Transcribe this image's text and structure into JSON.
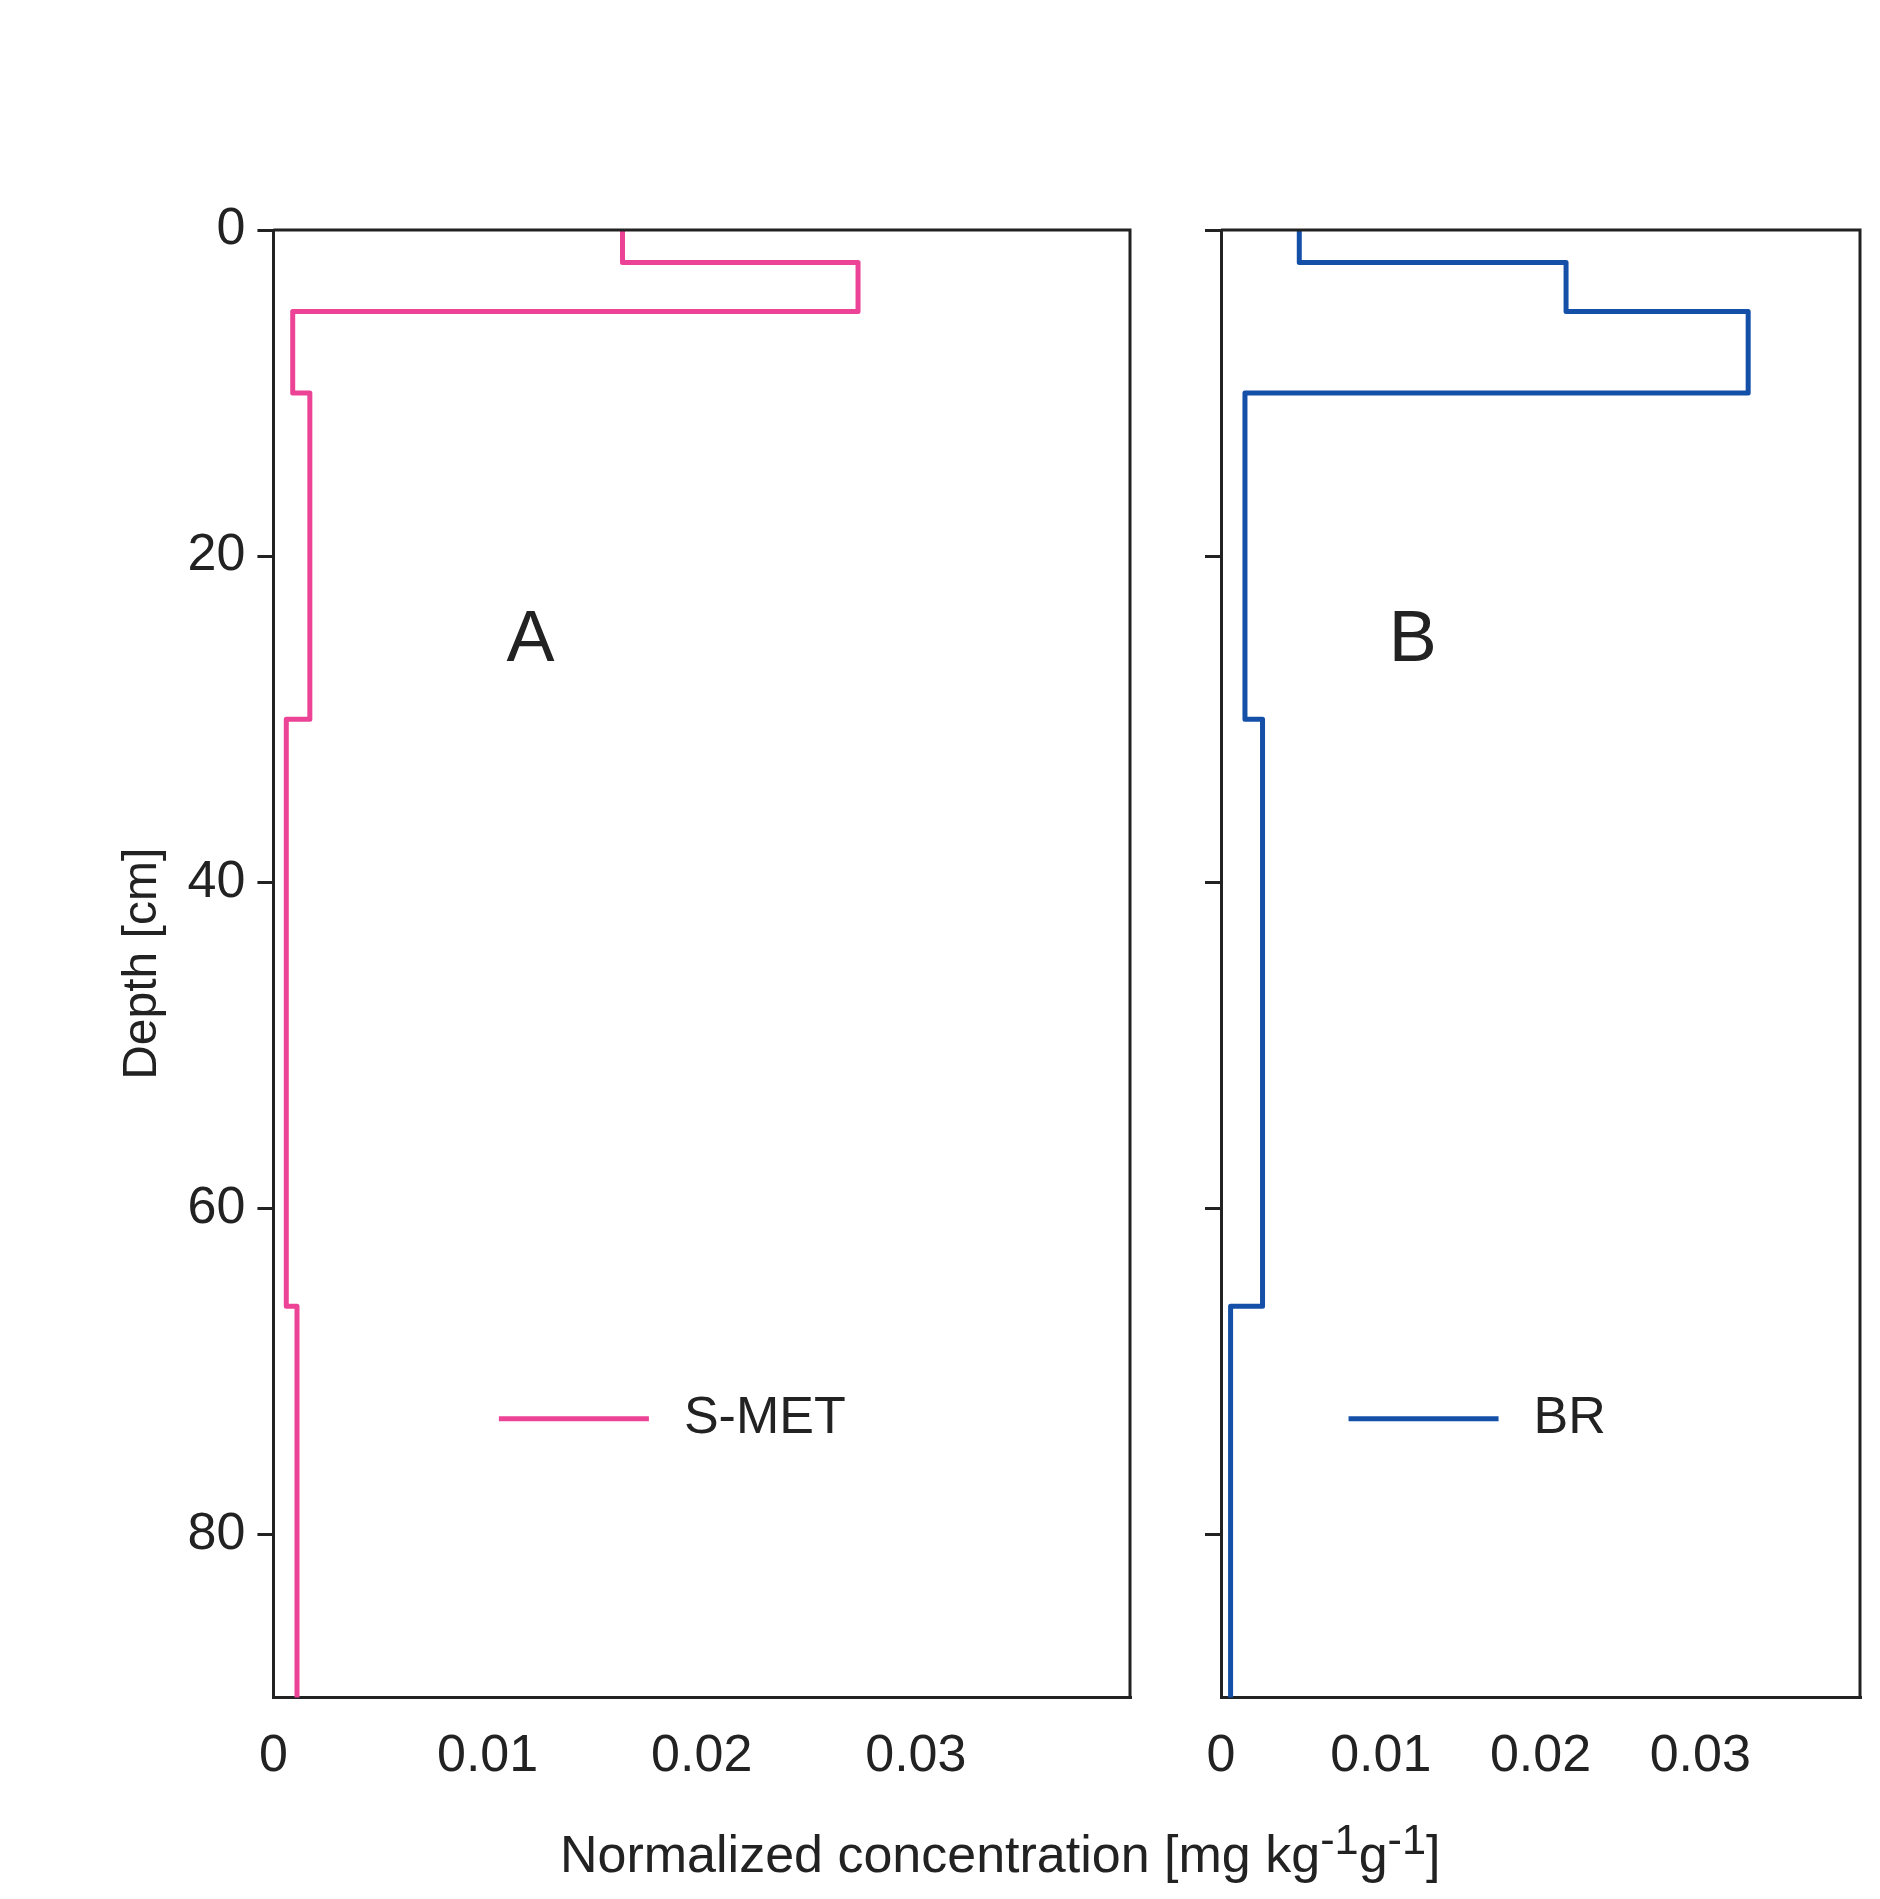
{
  "chart_data": [
    {
      "type": "line",
      "ylabel": "Depth [cm]",
      "xlabel": "Normalized concentration [mg kg$^{-1}$g$^{-1}$]",
      "annotations": [
        "A"
      ],
      "legend": "bottom",
      "xlim": [
        0,
        0.04
      ],
      "xticks": [
        0,
        0.01,
        0.02,
        0.03
      ],
      "ylim": [
        90,
        0
      ],
      "yticks": [
        0,
        20,
        40,
        60,
        80
      ],
      "series": [
        {
          "name": "S-MET",
          "color": "#ec4396",
          "x": [
            0.0163,
            0.0163,
            0.0273,
            0.0273,
            0.0009,
            0.0009,
            0.0017,
            0.0017,
            0.0006,
            0.0006,
            0.0011,
            0.0011
          ],
          "values": [
            0,
            2,
            2,
            5,
            5,
            10,
            10,
            30,
            30,
            66,
            66,
            90
          ]
        }
      ]
    },
    {
      "type": "line",
      "annotations": [
        "B"
      ],
      "legend": "bottom",
      "tick_labels": "x",
      "xlim": [
        0,
        0.04
      ],
      "xticks": [
        0,
        0.01,
        0.02,
        0.03
      ],
      "ylim": [
        90,
        0
      ],
      "yticks": [
        0,
        20,
        40,
        60,
        80
      ],
      "series": [
        {
          "name": "BR",
          "color": "#1450a8",
          "x": [
            0.0049,
            0.0049,
            0.0216,
            0.0216,
            0.033,
            0.033,
            0.0015,
            0.0015,
            0.0026,
            0.0026,
            0.0006,
            0.0006
          ],
          "values": [
            0,
            2,
            2,
            5,
            5,
            10,
            10,
            30,
            30,
            66,
            66,
            90
          ]
        }
      ]
    }
  ]
}
